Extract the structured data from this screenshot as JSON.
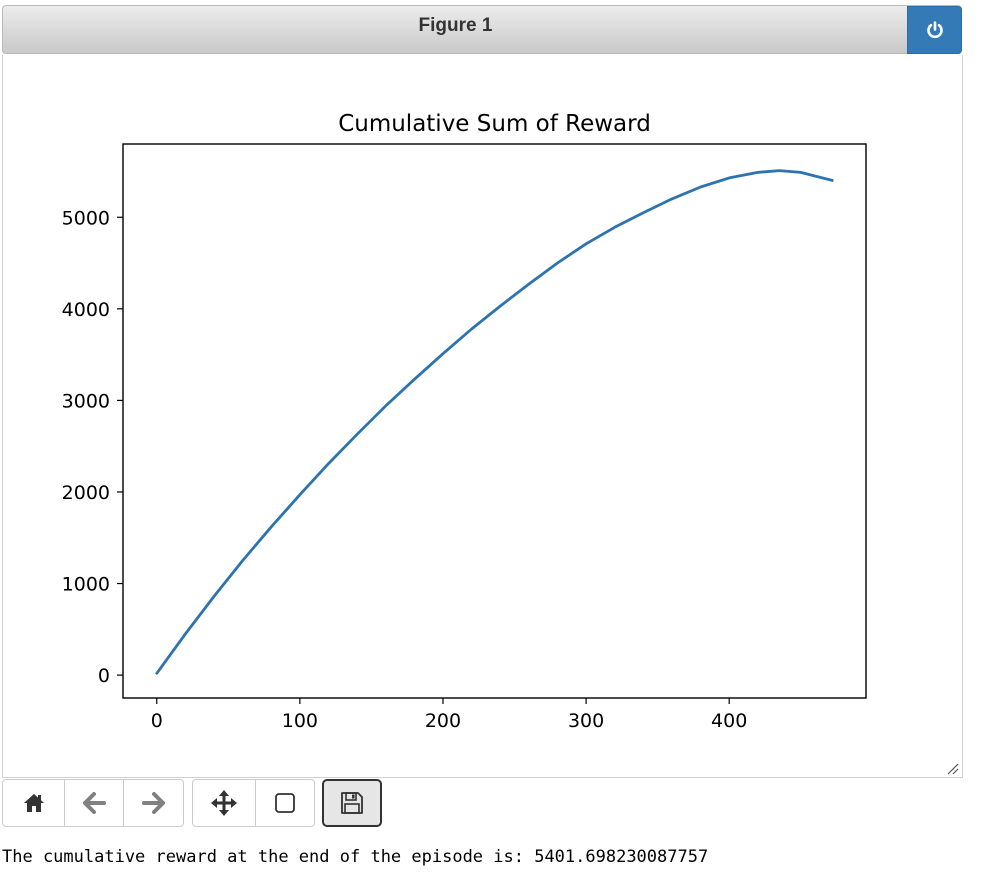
{
  "window": {
    "title": "Figure 1"
  },
  "toolbar": {
    "buttons": [
      {
        "name": "home",
        "icon": "home-icon"
      },
      {
        "name": "back",
        "icon": "arrow-left-icon"
      },
      {
        "name": "forward",
        "icon": "arrow-right-icon"
      },
      {
        "name": "pan",
        "icon": "move-icon"
      },
      {
        "name": "zoom",
        "icon": "square-icon"
      },
      {
        "name": "save",
        "icon": "floppy-disk-icon"
      }
    ]
  },
  "output_text": "The cumulative reward at the end of the episode is: 5401.698230087757",
  "colors": {
    "line": "#2c73b0",
    "power_button": "#337ab7"
  },
  "chart_data": {
    "type": "line",
    "title": "Cumulative Sum of Reward",
    "xlabel": "",
    "ylabel": "",
    "xlim": [
      -23.6,
      495.6
    ],
    "ylim": [
      -250,
      5800
    ],
    "xticks": [
      0,
      100,
      200,
      300,
      400
    ],
    "yticks": [
      0,
      1000,
      2000,
      3000,
      4000,
      5000
    ],
    "grid": false,
    "series": [
      {
        "x": [
          0,
          20,
          40,
          60,
          80,
          100,
          120,
          140,
          160,
          180,
          200,
          220,
          240,
          260,
          280,
          300,
          320,
          340,
          360,
          380,
          400,
          420,
          435,
          450,
          465,
          472
        ],
        "y": [
          20,
          450,
          860,
          1250,
          1620,
          1970,
          2310,
          2630,
          2940,
          3230,
          3510,
          3780,
          4030,
          4270,
          4500,
          4710,
          4890,
          5050,
          5200,
          5330,
          5430,
          5490,
          5510,
          5490,
          5430,
          5402
        ]
      }
    ]
  }
}
